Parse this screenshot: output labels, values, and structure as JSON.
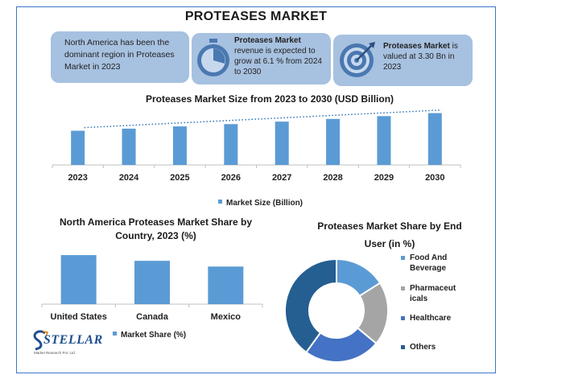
{
  "title": "PROTEASES MARKET",
  "cards": [
    {
      "text": "North America has been the dominant region in Proteases Market in 2023"
    },
    {
      "bold": "Proteases Market",
      "text": "revenue is expected to grow at 6.1 % from 2024 to 2030",
      "icon": "stopwatch-icon"
    },
    {
      "bold": "Proteases Market",
      "text": " is valued at 3.30 Bn in 2023",
      "icon": "target-icon"
    }
  ],
  "colors": {
    "bar": "#5b9bd5",
    "card": "#a7c1e0",
    "trend": "#2e75b6",
    "frame": "#3a78c4"
  },
  "logo": {
    "name": "STELLAR",
    "sub": "Market Research Pvt. Ltd."
  },
  "chart_data": [
    {
      "type": "bar",
      "title": "Proteases Market Size from 2023 to 2030 (USD Billion)",
      "categories": [
        "2023",
        "2024",
        "2025",
        "2026",
        "2027",
        "2028",
        "2029",
        "2030"
      ],
      "series": [
        {
          "name": "Market Size (Billion)",
          "values": [
            3.3,
            3.5,
            3.72,
            3.94,
            4.18,
            4.44,
            4.71,
            5.0
          ]
        }
      ],
      "trendline": "linear, dotted",
      "ylim": [
        0,
        5.2
      ],
      "legend": "bottom"
    },
    {
      "type": "bar",
      "title": "North America Proteases Market  Share by Country, 2023 (%)",
      "categories": [
        "United States",
        "Canada",
        "Mexico"
      ],
      "series": [
        {
          "name": "Market Share (%)",
          "values": [
            60,
            53,
            46
          ]
        }
      ],
      "ylim": [
        0,
        63
      ],
      "legend": "bottom"
    },
    {
      "type": "pie",
      "donut": true,
      "title": "Proteases Market Share by End User  (in %)",
      "labels": [
        "Food And Beverage",
        "Pharmaceuticals",
        "Healthcare",
        "Others"
      ],
      "label_lines": [
        [
          "Food And",
          "Beverage"
        ],
        [
          "Pharmaceut",
          "icals"
        ],
        [
          "Healthcare"
        ],
        [
          "Others"
        ]
      ],
      "values": [
        16,
        20,
        24,
        40
      ],
      "colors": [
        "#5b9bd5",
        "#a5a5a5",
        "#4472c4",
        "#255e91"
      ],
      "legend": "right"
    }
  ]
}
